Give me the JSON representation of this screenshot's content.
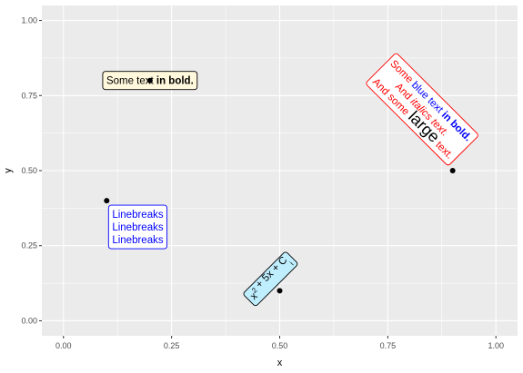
{
  "chart_data": {
    "type": "scatter",
    "title": "",
    "xlabel": "x",
    "ylabel": "y",
    "xlim": [
      -0.05,
      1.05
    ],
    "ylim": [
      -0.05,
      1.05
    ],
    "grid": true,
    "panel_background": "#EBEBEB",
    "x_ticks": [
      0,
      0.25,
      0.5,
      0.75,
      1
    ],
    "x_tick_labels": [
      "0.00",
      "0.25",
      "0.50",
      "0.75",
      "1.00"
    ],
    "y_ticks": [
      0,
      0.25,
      0.5,
      0.75,
      1
    ],
    "y_tick_labels": [
      "0.00",
      "0.25",
      "0.50",
      "0.75",
      "1.00"
    ],
    "points": [
      {
        "x": 0.2,
        "y": 0.8
      },
      {
        "x": 0.1,
        "y": 0.4
      },
      {
        "x": 0.5,
        "y": 0.1
      },
      {
        "x": 0.9,
        "y": 0.5
      }
    ],
    "annotations": [
      {
        "id": "bold-label",
        "x": 0.2,
        "y": 0.8,
        "angle": 0,
        "fill": "#FFF8DC",
        "border": "#000000",
        "lines": [
          [
            {
              "text": "Some text ",
              "color": "#000000"
            },
            {
              "text": "in bold.",
              "color": "#000000",
              "bold": true
            }
          ]
        ]
      },
      {
        "id": "linebreak-label",
        "x": 0.1,
        "y": 0.4,
        "angle": 0,
        "fill": "#FFFFFF",
        "border": "#0000FF",
        "lines": [
          [
            {
              "text": "Linebreaks",
              "color": "#0000FF"
            }
          ],
          [
            {
              "text": "Linebreaks",
              "color": "#0000FF"
            }
          ],
          [
            {
              "text": "Linebreaks",
              "color": "#0000FF"
            }
          ]
        ]
      },
      {
        "id": "formula-label",
        "x": 0.5,
        "y": 0.1,
        "angle": 45,
        "fill": "#BFEFFF",
        "border": "#000000",
        "lines": [
          [
            {
              "text": "x",
              "color": "#000000"
            },
            {
              "text": "2",
              "color": "#000000",
              "sup": true
            },
            {
              "text": " + 5x + C",
              "color": "#000000"
            },
            {
              "text": "i",
              "color": "#000000",
              "sub": true
            }
          ]
        ]
      },
      {
        "id": "rich-label",
        "x": 0.9,
        "y": 0.5,
        "angle": -45,
        "fill": "#FFFFFF",
        "border": "#FF0000",
        "lines": [
          [
            {
              "text": "Some ",
              "color": "#FF0000"
            },
            {
              "text": "blue text ",
              "color": "#0000FF"
            },
            {
              "text": "in bold.",
              "color": "#0000FF",
              "bold": true
            }
          ],
          [
            {
              "text": "And ",
              "color": "#FF0000"
            },
            {
              "text": "italics text.",
              "color": "#FF0000",
              "italic": true
            }
          ],
          [
            {
              "text": "And some ",
              "color": "#FF0000"
            },
            {
              "text": "large",
              "color": "#000000",
              "large": true
            },
            {
              "text": " text.",
              "color": "#FF0000"
            }
          ]
        ]
      }
    ]
  }
}
